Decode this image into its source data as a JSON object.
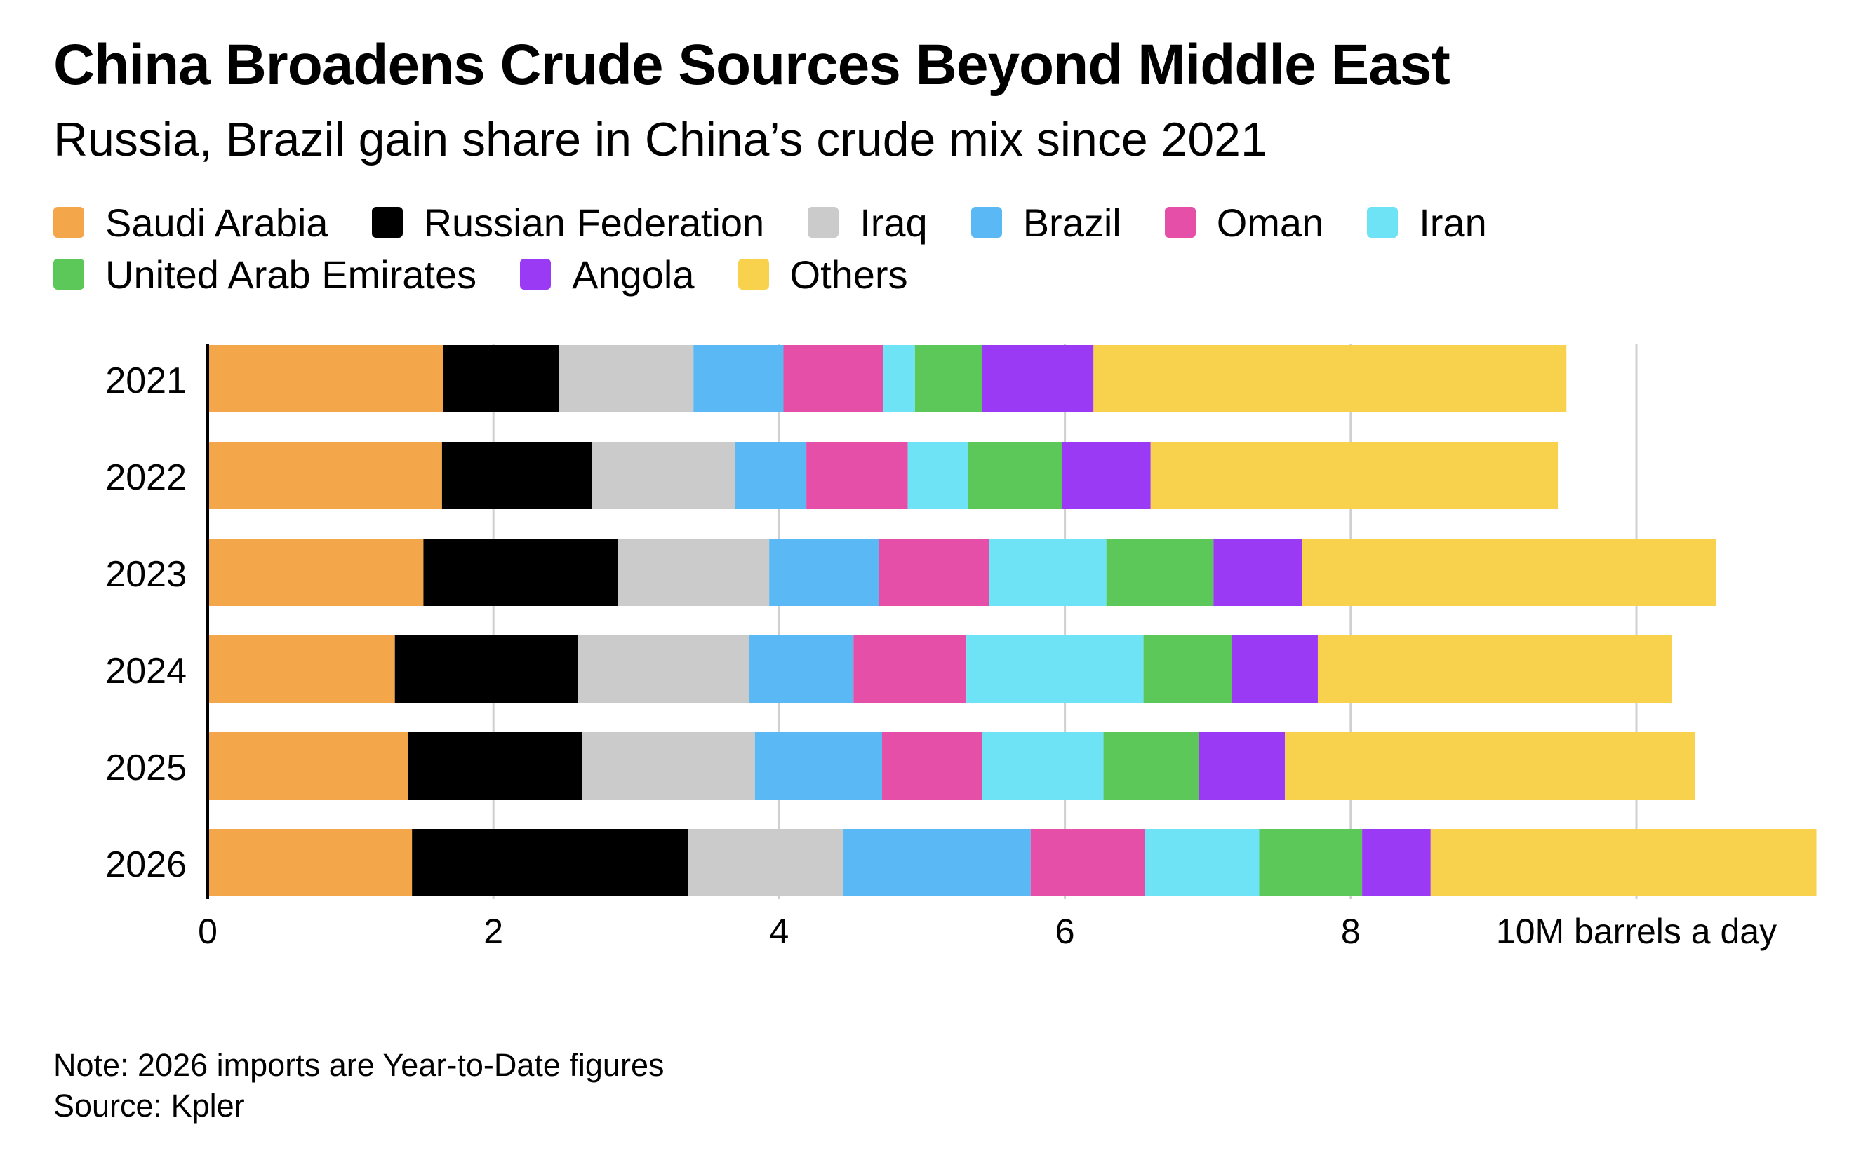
{
  "title": "China Broadens Crude Sources Beyond Middle East",
  "subtitle": "Russia, Brazil gain share in China’s crude mix since 2021",
  "note": "Note: 2026 imports are Year-to-Date figures",
  "source": "Source: Kpler",
  "legend": [
    {
      "label": "Saudi Arabia",
      "color": "#f4a64a"
    },
    {
      "label": "Russian Federation",
      "color": "#000000"
    },
    {
      "label": "Iraq",
      "color": "#cbcbcb"
    },
    {
      "label": "Brazil",
      "color": "#5ab8f5"
    },
    {
      "label": "Oman",
      "color": "#e54fa7"
    },
    {
      "label": "Iran",
      "color": "#6ee3f6"
    },
    {
      "label": "United Arab Emirates",
      "color": "#5cc85a"
    },
    {
      "label": "Angola",
      "color": "#9b3af5"
    },
    {
      "label": "Others",
      "color": "#f8d24d"
    }
  ],
  "chart_data": {
    "type": "bar",
    "orientation": "horizontal",
    "stacked": true,
    "title": "China Broadens Crude Sources Beyond Middle East",
    "subtitle": "Russia, Brazil gain share in China’s crude mix since 2021",
    "categories": [
      "2021",
      "2022",
      "2023",
      "2024",
      "2025",
      "2026"
    ],
    "xlabel": "M barrels a day",
    "x_ticks": [
      "0",
      "2",
      "4",
      "6",
      "8",
      "10M barrels a day"
    ],
    "xlim": [
      0,
      11.25
    ],
    "grid": true,
    "legend_position": "top",
    "series": [
      {
        "name": "Saudi Arabia",
        "color": "#f4a64a",
        "values": [
          1.65,
          1.64,
          1.51,
          1.31,
          1.4,
          1.43
        ]
      },
      {
        "name": "Russian Federation",
        "color": "#000000",
        "values": [
          0.81,
          1.05,
          1.36,
          1.28,
          1.22,
          1.93
        ]
      },
      {
        "name": "Iraq",
        "color": "#cbcbcb",
        "values": [
          0.94,
          1.0,
          1.06,
          1.2,
          1.21,
          1.09
        ]
      },
      {
        "name": "Brazil",
        "color": "#5ab8f5",
        "values": [
          0.63,
          0.5,
          0.77,
          0.73,
          0.89,
          1.31
        ]
      },
      {
        "name": "Oman",
        "color": "#e54fa7",
        "values": [
          0.7,
          0.71,
          0.77,
          0.79,
          0.7,
          0.8
        ]
      },
      {
        "name": "Iran",
        "color": "#6ee3f6",
        "values": [
          0.22,
          0.42,
          0.82,
          1.24,
          0.85,
          0.8
        ]
      },
      {
        "name": "United Arab Emirates",
        "color": "#5cc85a",
        "values": [
          0.47,
          0.66,
          0.75,
          0.62,
          0.67,
          0.72
        ]
      },
      {
        "name": "Angola",
        "color": "#9b3af5",
        "values": [
          0.78,
          0.62,
          0.62,
          0.6,
          0.6,
          0.48
        ]
      },
      {
        "name": "Others",
        "color": "#f8d24d",
        "values": [
          3.31,
          2.85,
          2.9,
          2.48,
          2.87,
          2.7
        ]
      }
    ]
  }
}
